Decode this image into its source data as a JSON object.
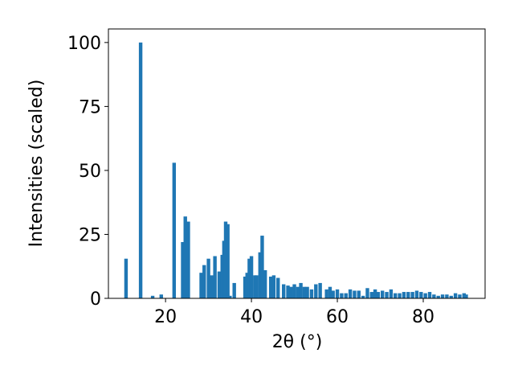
{
  "chart_data": {
    "type": "bar",
    "xlabel": "2θ (°)",
    "ylabel": "Intensities (scaled)",
    "x": [
      10.8,
      14.2,
      17,
      19,
      22,
      24,
      24.6,
      25.3,
      28.3,
      29,
      30,
      30.7,
      31.5,
      32.5,
      33.2,
      33.6,
      34,
      34.5,
      35,
      36,
      38.5,
      39,
      39.5,
      40,
      40.8,
      41.2,
      42,
      42.5,
      43.2,
      44.5,
      45.2,
      46.2,
      47.5,
      48.5,
      49.2,
      50,
      50.8,
      51.5,
      52.3,
      53,
      54,
      55,
      56,
      57.5,
      58.3,
      59,
      60,
      61,
      62,
      63,
      64,
      65,
      66,
      67,
      68,
      68.8,
      69.5,
      70.5,
      71.5,
      72.5,
      73.5,
      74.5,
      75.5,
      76.5,
      77.5,
      78.5,
      79.5,
      80.5,
      81.5,
      82.5,
      83.5,
      84.5,
      85.5,
      86.5,
      87.5,
      88.5,
      89.5,
      90
    ],
    "values": [
      15.5,
      100,
      1,
      1.5,
      53,
      22,
      32,
      30,
      10,
      13,
      15.5,
      9,
      16.5,
      10.5,
      17,
      22.5,
      30,
      29,
      1,
      6,
      8.5,
      10,
      15.5,
      16.5,
      9,
      9,
      18,
      24.5,
      11,
      8.5,
      9,
      8,
      5.5,
      5,
      4.5,
      5.5,
      4.5,
      6,
      4.5,
      4.5,
      3.5,
      5.5,
      6,
      3.5,
      4.5,
      3,
      3.5,
      2,
      2,
      3.5,
      3,
      3,
      1,
      4,
      2.5,
      3.5,
      2.5,
      3,
      2.5,
      3.5,
      2,
      2,
      2.5,
      2.5,
      2.5,
      3,
      2.5,
      2,
      2.5,
      1.5,
      1,
      1.5,
      1.5,
      1,
      2,
      1.5,
      2,
      1.5
    ],
    "color": "#1f77b4",
    "xlim": [
      6.7,
      94.4
    ],
    "ylim": [
      0,
      105.3
    ],
    "xticks": [
      20,
      40,
      60,
      80
    ],
    "yticks": [
      0,
      25,
      50,
      75,
      100
    ]
  }
}
